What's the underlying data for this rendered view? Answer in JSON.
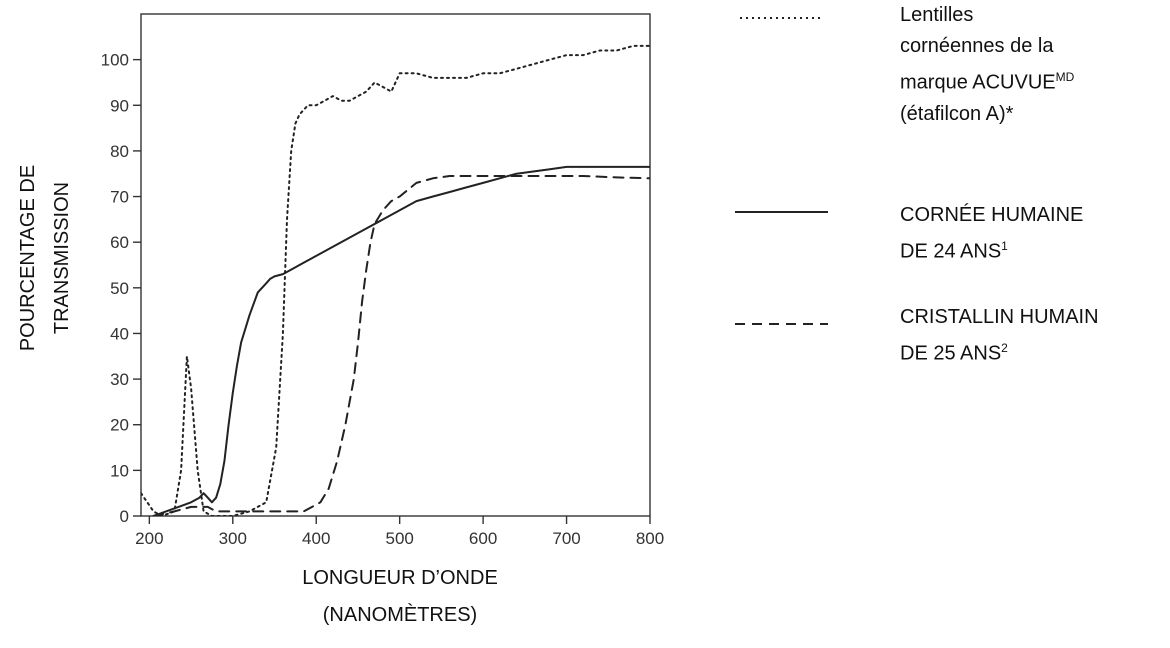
{
  "chart_data": {
    "type": "line",
    "xlabel": [
      "LONGUEUR D’ONDE",
      "(NANOMÈTRES)"
    ],
    "ylabel": [
      "POURCENTAGE DE",
      "TRANSMISSION"
    ],
    "xlim": [
      190,
      800
    ],
    "ylim": [
      0,
      110
    ],
    "x_ticks": [
      200,
      300,
      400,
      500,
      600,
      700,
      800
    ],
    "y_ticks": [
      0,
      10,
      20,
      30,
      40,
      50,
      60,
      70,
      80,
      90,
      100
    ],
    "grid": false,
    "legend_position": "right",
    "series": [
      {
        "name": "Lentilles cornéennes de la marque ACUVUE^MD (étafilcon A)*",
        "legend_lines": [
          [
            "Lentilles"
          ],
          [
            "cornéennes de la"
          ],
          [
            "marque ACUVUE",
            "MD"
          ],
          [
            "(étafilcon A)*"
          ]
        ],
        "style": "dotted",
        "x": [
          190,
          205,
          215,
          230,
          238,
          245,
          250,
          258,
          265,
          275,
          285,
          300,
          320,
          340,
          352,
          360,
          365,
          370,
          375,
          380,
          390,
          400,
          410,
          420,
          430,
          440,
          450,
          460,
          470,
          480,
          490,
          500,
          520,
          540,
          560,
          580,
          600,
          620,
          640,
          660,
          680,
          700,
          720,
          740,
          760,
          780,
          800
        ],
        "y": [
          5,
          1,
          0,
          1,
          10,
          35,
          28,
          10,
          1,
          0,
          0,
          0,
          1,
          3,
          15,
          40,
          65,
          80,
          86,
          88,
          90,
          90,
          91,
          92,
          91,
          91,
          92,
          93,
          95,
          94,
          93,
          97,
          97,
          96,
          96,
          96,
          97,
          97,
          98,
          99,
          100,
          101,
          101,
          102,
          102,
          103,
          103
        ]
      },
      {
        "name": "CORNÉE HUMAINE DE 24 ANS^1",
        "legend_lines": [
          [
            "CORNÉE HUMAINE"
          ],
          [
            "DE 24 ANS",
            "1"
          ]
        ],
        "style": "solid",
        "x": [
          205,
          220,
          235,
          250,
          260,
          265,
          270,
          275,
          280,
          285,
          290,
          295,
          300,
          305,
          310,
          320,
          330,
          340,
          345,
          350,
          360,
          370,
          380,
          400,
          420,
          440,
          460,
          480,
          500,
          520,
          540,
          560,
          580,
          600,
          640,
          680,
          700,
          750,
          800
        ],
        "y": [
          0,
          1,
          2,
          3,
          4,
          5,
          4,
          3,
          4,
          7,
          12,
          20,
          27,
          33,
          38,
          44,
          49,
          51,
          52,
          52.5,
          53,
          54,
          55,
          57,
          59,
          61,
          63,
          65,
          67,
          69,
          70,
          71,
          72,
          73,
          75,
          76,
          76.5,
          76.5,
          76.5
        ]
      },
      {
        "name": "CRISTALLIN HUMAIN DE 25 ANS^2",
        "legend_lines": [
          [
            "CRISTALLIN HUMAIN"
          ],
          [
            "DE 25 ANS",
            "2"
          ]
        ],
        "style": "dashed",
        "x": [
          205,
          230,
          250,
          270,
          280,
          300,
          330,
          350,
          370,
          385,
          395,
          405,
          415,
          425,
          435,
          445,
          450,
          455,
          460,
          465,
          470,
          480,
          490,
          500,
          520,
          540,
          560,
          580,
          600,
          640,
          680,
          720,
          760,
          800
        ],
        "y": [
          0,
          1,
          2,
          2,
          1,
          1,
          1,
          1,
          1,
          1,
          2,
          3,
          6,
          12,
          20,
          30,
          38,
          47,
          54,
          60,
          64,
          67,
          69,
          70,
          73,
          74,
          74.5,
          74.5,
          74.5,
          74.5,
          74.5,
          74.5,
          74.2,
          74
        ]
      }
    ]
  }
}
